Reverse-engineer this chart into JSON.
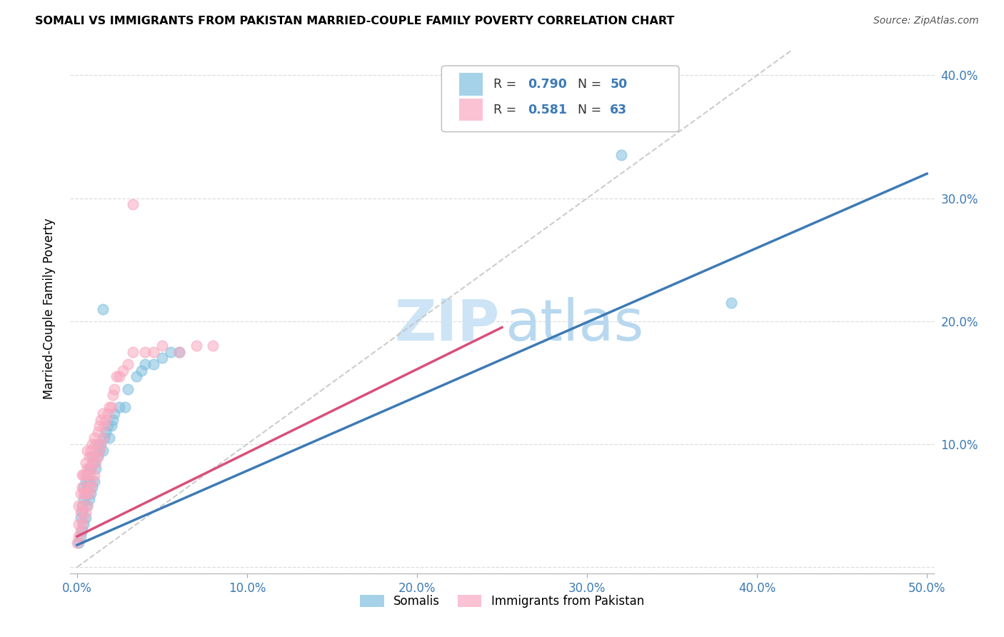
{
  "title": "SOMALI VS IMMIGRANTS FROM PAKISTAN MARRIED-COUPLE FAMILY POVERTY CORRELATION CHART",
  "source": "Source: ZipAtlas.com",
  "ylabel": "Married-Couple Family Poverty",
  "xlim": [
    0.0,
    0.5
  ],
  "ylim": [
    0.0,
    0.42
  ],
  "somali_R": "0.790",
  "somali_N": "50",
  "pakistan_R": "0.581",
  "pakistan_N": "63",
  "somali_color": "#7fbfdf",
  "pakistan_color": "#f9a8bf",
  "somali_line_color": "#3d7ab5",
  "pakistan_line_color": "#d94f7a",
  "diagonal_color": "#c0c0c0",
  "background_color": "#ffffff",
  "watermark_zip_color": "#cce4f5",
  "watermark_atlas_color": "#b8d8ef",
  "grid_color": "#dddddd",
  "somali_x": [
    0.001,
    0.002,
    0.002,
    0.003,
    0.003,
    0.003,
    0.004,
    0.004,
    0.004,
    0.005,
    0.005,
    0.005,
    0.006,
    0.006,
    0.006,
    0.007,
    0.007,
    0.007,
    0.008,
    0.008,
    0.009,
    0.009,
    0.01,
    0.01,
    0.011,
    0.012,
    0.012,
    0.013,
    0.014,
    0.015,
    0.016,
    0.017,
    0.018,
    0.019,
    0.02,
    0.021,
    0.022,
    0.025,
    0.028,
    0.03,
    0.035,
    0.038,
    0.04,
    0.045,
    0.05,
    0.055,
    0.06,
    0.32,
    0.385,
    0.015
  ],
  "somali_y": [
    0.02,
    0.025,
    0.04,
    0.03,
    0.045,
    0.05,
    0.035,
    0.055,
    0.065,
    0.04,
    0.06,
    0.07,
    0.05,
    0.065,
    0.075,
    0.055,
    0.07,
    0.08,
    0.06,
    0.08,
    0.065,
    0.09,
    0.07,
    0.085,
    0.08,
    0.09,
    0.1,
    0.095,
    0.1,
    0.095,
    0.105,
    0.11,
    0.115,
    0.105,
    0.115,
    0.12,
    0.125,
    0.13,
    0.13,
    0.145,
    0.155,
    0.16,
    0.165,
    0.165,
    0.17,
    0.175,
    0.175,
    0.335,
    0.215,
    0.21
  ],
  "pakistan_x": [
    0.0,
    0.001,
    0.001,
    0.001,
    0.002,
    0.002,
    0.002,
    0.003,
    0.003,
    0.003,
    0.003,
    0.004,
    0.004,
    0.004,
    0.005,
    0.005,
    0.005,
    0.005,
    0.006,
    0.006,
    0.006,
    0.006,
    0.007,
    0.007,
    0.007,
    0.008,
    0.008,
    0.008,
    0.009,
    0.009,
    0.009,
    0.01,
    0.01,
    0.01,
    0.011,
    0.011,
    0.012,
    0.012,
    0.013,
    0.013,
    0.014,
    0.014,
    0.015,
    0.015,
    0.016,
    0.017,
    0.018,
    0.019,
    0.02,
    0.021,
    0.022,
    0.023,
    0.025,
    0.027,
    0.03,
    0.033,
    0.04,
    0.045,
    0.05,
    0.06,
    0.07,
    0.08,
    0.033
  ],
  "pakistan_y": [
    0.02,
    0.025,
    0.035,
    0.05,
    0.03,
    0.045,
    0.06,
    0.035,
    0.05,
    0.065,
    0.075,
    0.04,
    0.06,
    0.075,
    0.045,
    0.06,
    0.075,
    0.085,
    0.05,
    0.065,
    0.08,
    0.095,
    0.06,
    0.075,
    0.09,
    0.065,
    0.08,
    0.095,
    0.07,
    0.085,
    0.1,
    0.075,
    0.09,
    0.105,
    0.085,
    0.1,
    0.09,
    0.11,
    0.095,
    0.115,
    0.1,
    0.12,
    0.105,
    0.125,
    0.115,
    0.12,
    0.125,
    0.13,
    0.13,
    0.14,
    0.145,
    0.155,
    0.155,
    0.16,
    0.165,
    0.175,
    0.175,
    0.175,
    0.18,
    0.175,
    0.18,
    0.18,
    0.295
  ],
  "somali_line_x": [
    0.0,
    0.5
  ],
  "somali_line_y": [
    0.018,
    0.32
  ],
  "pakistan_line_x": [
    0.0,
    0.25
  ],
  "pakistan_line_y": [
    0.025,
    0.195
  ]
}
